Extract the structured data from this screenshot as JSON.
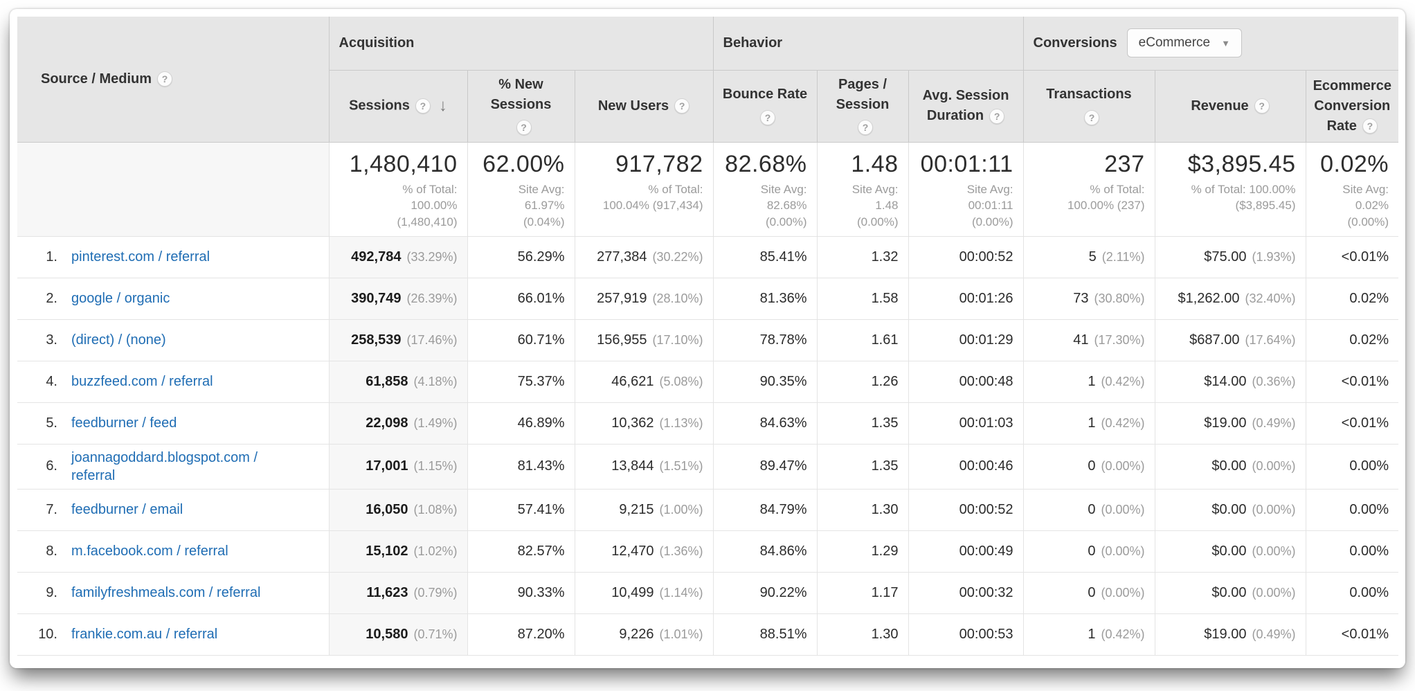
{
  "table": {
    "groups": {
      "acquisition": "Acquisition",
      "behavior": "Behavior",
      "conversions": "Conversions",
      "conversions_dropdown": "eCommerce"
    },
    "columns": {
      "source_medium": "Source / Medium",
      "sessions": "Sessions",
      "pct_new_sessions": "% New Sessions",
      "new_users": "New Users",
      "bounce_rate": "Bounce Rate",
      "pages_session": "Pages / Session",
      "avg_session_duration": "Avg. Session Duration",
      "transactions": "Transactions",
      "revenue": "Revenue",
      "ecommerce_conversion_rate": "Ecommerce Conversion Rate"
    },
    "totals": {
      "sessions": {
        "value": "1,480,410",
        "sub": "% of Total:\n100.00%\n(1,480,410)"
      },
      "pct_new_sessions": {
        "value": "62.00%",
        "sub": "Site Avg:\n61.97%\n(0.04%)"
      },
      "new_users": {
        "value": "917,782",
        "sub": "% of Total:\n100.04% (917,434)"
      },
      "bounce_rate": {
        "value": "82.68%",
        "sub": "Site Avg:\n82.68%\n(0.00%)"
      },
      "pages_session": {
        "value": "1.48",
        "sub": "Site Avg:\n1.48\n(0.00%)"
      },
      "avg_session_duration": {
        "value": "00:01:11",
        "sub": "Site Avg:\n00:01:11\n(0.00%)"
      },
      "transactions": {
        "value": "237",
        "sub": "% of Total:\n100.00% (237)"
      },
      "revenue": {
        "value": "$3,895.45",
        "sub": "% of Total: 100.00%\n($3,895.45)"
      },
      "ecommerce_conversion_rate": {
        "value": "0.02%",
        "sub": "Site Avg:\n0.02%\n(0.00%)"
      }
    },
    "rows": [
      {
        "index": "1.",
        "source": "pinterest.com / referral",
        "sessions": "492,784",
        "sessions_pct": "(33.29%)",
        "pct_new_sessions": "56.29%",
        "new_users": "277,384",
        "new_users_pct": "(30.22%)",
        "bounce_rate": "85.41%",
        "pages_session": "1.32",
        "avg_session_duration": "00:00:52",
        "transactions": "5",
        "transactions_pct": "(2.11%)",
        "revenue": "$75.00",
        "revenue_pct": "(1.93%)",
        "ecr": "<0.01%"
      },
      {
        "index": "2.",
        "source": "google / organic",
        "sessions": "390,749",
        "sessions_pct": "(26.39%)",
        "pct_new_sessions": "66.01%",
        "new_users": "257,919",
        "new_users_pct": "(28.10%)",
        "bounce_rate": "81.36%",
        "pages_session": "1.58",
        "avg_session_duration": "00:01:26",
        "transactions": "73",
        "transactions_pct": "(30.80%)",
        "revenue": "$1,262.00",
        "revenue_pct": "(32.40%)",
        "ecr": "0.02%"
      },
      {
        "index": "3.",
        "source": "(direct) / (none)",
        "sessions": "258,539",
        "sessions_pct": "(17.46%)",
        "pct_new_sessions": "60.71%",
        "new_users": "156,955",
        "new_users_pct": "(17.10%)",
        "bounce_rate": "78.78%",
        "pages_session": "1.61",
        "avg_session_duration": "00:01:29",
        "transactions": "41",
        "transactions_pct": "(17.30%)",
        "revenue": "$687.00",
        "revenue_pct": "(17.64%)",
        "ecr": "0.02%"
      },
      {
        "index": "4.",
        "source": "buzzfeed.com / referral",
        "sessions": "61,858",
        "sessions_pct": "(4.18%)",
        "pct_new_sessions": "75.37%",
        "new_users": "46,621",
        "new_users_pct": "(5.08%)",
        "bounce_rate": "90.35%",
        "pages_session": "1.26",
        "avg_session_duration": "00:00:48",
        "transactions": "1",
        "transactions_pct": "(0.42%)",
        "revenue": "$14.00",
        "revenue_pct": "(0.36%)",
        "ecr": "<0.01%"
      },
      {
        "index": "5.",
        "source": "feedburner / feed",
        "sessions": "22,098",
        "sessions_pct": "(1.49%)",
        "pct_new_sessions": "46.89%",
        "new_users": "10,362",
        "new_users_pct": "(1.13%)",
        "bounce_rate": "84.63%",
        "pages_session": "1.35",
        "avg_session_duration": "00:01:03",
        "transactions": "1",
        "transactions_pct": "(0.42%)",
        "revenue": "$19.00",
        "revenue_pct": "(0.49%)",
        "ecr": "<0.01%"
      },
      {
        "index": "6.",
        "source": "joannagoddard.blogspot.com / referral",
        "sessions": "17,001",
        "sessions_pct": "(1.15%)",
        "pct_new_sessions": "81.43%",
        "new_users": "13,844",
        "new_users_pct": "(1.51%)",
        "bounce_rate": "89.47%",
        "pages_session": "1.35",
        "avg_session_duration": "00:00:46",
        "transactions": "0",
        "transactions_pct": "(0.00%)",
        "revenue": "$0.00",
        "revenue_pct": "(0.00%)",
        "ecr": "0.00%"
      },
      {
        "index": "7.",
        "source": "feedburner / email",
        "sessions": "16,050",
        "sessions_pct": "(1.08%)",
        "pct_new_sessions": "57.41%",
        "new_users": "9,215",
        "new_users_pct": "(1.00%)",
        "bounce_rate": "84.79%",
        "pages_session": "1.30",
        "avg_session_duration": "00:00:52",
        "transactions": "0",
        "transactions_pct": "(0.00%)",
        "revenue": "$0.00",
        "revenue_pct": "(0.00%)",
        "ecr": "0.00%"
      },
      {
        "index": "8.",
        "source": "m.facebook.com / referral",
        "sessions": "15,102",
        "sessions_pct": "(1.02%)",
        "pct_new_sessions": "82.57%",
        "new_users": "12,470",
        "new_users_pct": "(1.36%)",
        "bounce_rate": "84.86%",
        "pages_session": "1.29",
        "avg_session_duration": "00:00:49",
        "transactions": "0",
        "transactions_pct": "(0.00%)",
        "revenue": "$0.00",
        "revenue_pct": "(0.00%)",
        "ecr": "0.00%"
      },
      {
        "index": "9.",
        "source": "familyfreshmeals.com / referral",
        "sessions": "11,623",
        "sessions_pct": "(0.79%)",
        "pct_new_sessions": "90.33%",
        "new_users": "10,499",
        "new_users_pct": "(1.14%)",
        "bounce_rate": "90.22%",
        "pages_session": "1.17",
        "avg_session_duration": "00:00:32",
        "transactions": "0",
        "transactions_pct": "(0.00%)",
        "revenue": "$0.00",
        "revenue_pct": "(0.00%)",
        "ecr": "0.00%"
      },
      {
        "index": "10.",
        "source": "frankie.com.au / referral",
        "sessions": "10,580",
        "sessions_pct": "(0.71%)",
        "pct_new_sessions": "87.20%",
        "new_users": "9,226",
        "new_users_pct": "(1.01%)",
        "bounce_rate": "88.51%",
        "pages_session": "1.30",
        "avg_session_duration": "00:00:53",
        "transactions": "1",
        "transactions_pct": "(0.42%)",
        "revenue": "$19.00",
        "revenue_pct": "(0.49%)",
        "ecr": "<0.01%"
      }
    ]
  }
}
